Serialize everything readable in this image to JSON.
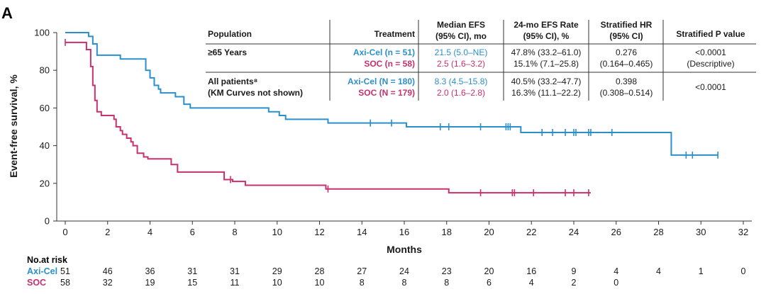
{
  "panel_label": "A",
  "colors": {
    "axi_cel": "#2a8fcd",
    "soc": "#c8306e",
    "text": "#1a1a1a"
  },
  "chart_data": {
    "type": "line",
    "step": true,
    "xlabel": "Months",
    "ylabel": "Event-free survival, %",
    "xlim": [
      0,
      32
    ],
    "ylim": [
      0,
      100
    ],
    "x_ticks": [
      0,
      2,
      4,
      6,
      8,
      10,
      12,
      14,
      16,
      18,
      20,
      22,
      24,
      26,
      28,
      30,
      32
    ],
    "y_ticks": [
      0,
      20,
      40,
      60,
      80,
      100
    ],
    "grid": false,
    "series": [
      {
        "name": "Axi-Cel",
        "color": "#2a8fcd",
        "points": [
          [
            0,
            100
          ],
          [
            1.1,
            98
          ],
          [
            1.3,
            94
          ],
          [
            1.5,
            88
          ],
          [
            2.6,
            86
          ],
          [
            3.8,
            80
          ],
          [
            4.0,
            76
          ],
          [
            4.2,
            72
          ],
          [
            4.4,
            70
          ],
          [
            4.5,
            68
          ],
          [
            5.2,
            66
          ],
          [
            5.6,
            62
          ],
          [
            5.9,
            60
          ],
          [
            9.6,
            58
          ],
          [
            10.1,
            56
          ],
          [
            10.4,
            54
          ],
          [
            12.4,
            52
          ],
          [
            16.1,
            50
          ],
          [
            21.5,
            47
          ],
          [
            28.6,
            35
          ],
          [
            30.8,
            35
          ]
        ],
        "censor": [
          14.4,
          15.4,
          17.7,
          18.1,
          19.6,
          20.8,
          20.9,
          21.0,
          22.5,
          23.0,
          23.6,
          24.0,
          24.1,
          24.7,
          24.8,
          25.8,
          29.3,
          29.6,
          30.8
        ]
      },
      {
        "name": "SOC",
        "color": "#c8306e",
        "points": [
          [
            0,
            94.8
          ],
          [
            0.8,
            94.8
          ],
          [
            1.0,
            91
          ],
          [
            1.2,
            82
          ],
          [
            1.3,
            72
          ],
          [
            1.4,
            64
          ],
          [
            1.5,
            58
          ],
          [
            1.7,
            56
          ],
          [
            2.3,
            54
          ],
          [
            2.4,
            50
          ],
          [
            2.6,
            48
          ],
          [
            2.7,
            46
          ],
          [
            2.9,
            44
          ],
          [
            3.1,
            42
          ],
          [
            3.2,
            40
          ],
          [
            3.4,
            36
          ],
          [
            3.7,
            34
          ],
          [
            3.9,
            33
          ],
          [
            5.0,
            30
          ],
          [
            5.3,
            26
          ],
          [
            7.5,
            22
          ],
          [
            7.9,
            21
          ],
          [
            8.5,
            19
          ],
          [
            12.3,
            17
          ],
          [
            18.1,
            15
          ],
          [
            24.8,
            15
          ]
        ],
        "censor": [
          0,
          7.8,
          12.4,
          19.6,
          21.1,
          21.2,
          22.1,
          23.6,
          24.0,
          24.7
        ]
      }
    ]
  },
  "table": {
    "headers": {
      "population": "Population",
      "treatment": "Treatment",
      "median_l1": "Median EFS",
      "median_l2": "(95% CI), mo",
      "rate_l1": "24-mo EFS Rate",
      "rate_l2": "(95% CI), %",
      "hr_l1": "Stratified HR",
      "hr_l2": "(95% CI)",
      "p_value": "Stratified P value"
    },
    "rows": [
      {
        "population_l1": "≥65 Years",
        "population_l2": "",
        "axi_label": "Axi-Cel (n = 51)",
        "soc_label": "SOC (n = 58)",
        "axi_median": "21.5 (5.0–NE)",
        "soc_median": "2.5 (1.6–3.2)",
        "axi_rate": "47.8% (33.2–61.0)",
        "soc_rate": "15.1% (7.1–25.8)",
        "hr_l1": "0.276",
        "hr_l2": "(0.164–0.465)",
        "p_l1": "<0.0001",
        "p_l2": "(Descriptive)"
      },
      {
        "population_l1": "All patients⁸",
        "population_l2": "(KM Curves not shown)",
        "axi_label": "Axi-Cel (N = 180)",
        "soc_label": "SOC (N = 179)",
        "axi_median": "8.3 (4.5–15.8)",
        "soc_median": "2.0 (1.6–2.8)",
        "axi_rate": "40.5% (33.2–47.7)",
        "soc_rate": "16.3% (11.1–22.2)",
        "hr_l1": "0.398",
        "hr_l2": "(0.308–0.514)",
        "p_l1": "<0.0001",
        "p_l2": ""
      }
    ]
  },
  "risk_table": {
    "title": "No.at risk",
    "times": [
      0,
      2,
      4,
      6,
      8,
      10,
      12,
      14,
      16,
      18,
      20,
      22,
      24,
      26,
      28,
      30,
      32
    ],
    "rows": [
      {
        "label": "Axi-Cel",
        "color": "#2a8fcd",
        "values": [
          "51",
          "46",
          "36",
          "31",
          "31",
          "29",
          "28",
          "27",
          "24",
          "23",
          "20",
          "16",
          "9",
          "4",
          "4",
          "1",
          "0"
        ]
      },
      {
        "label": "SOC",
        "color": "#c8306e",
        "values": [
          "58",
          "32",
          "19",
          "15",
          "11",
          "10",
          "10",
          "8",
          "8",
          "8",
          "6",
          "4",
          "2",
          "0",
          "",
          "",
          ""
        ]
      }
    ]
  }
}
